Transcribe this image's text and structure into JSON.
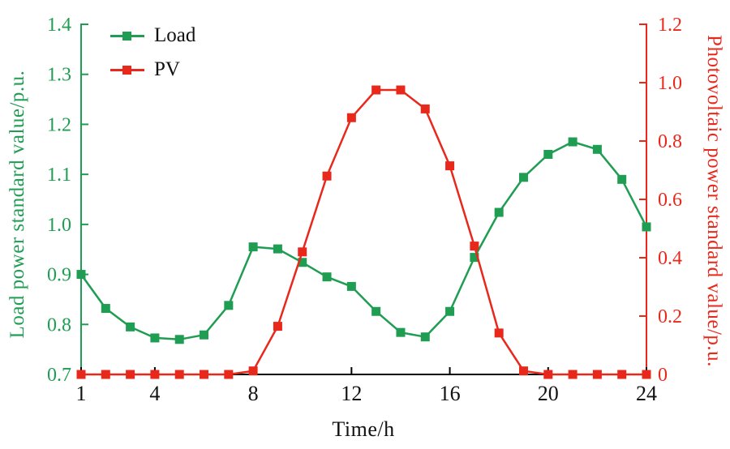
{
  "chart_data": {
    "type": "line",
    "title": "",
    "xlabel": "Time/h",
    "x_range": [
      1,
      24
    ],
    "x_ticks": [
      1,
      4,
      8,
      12,
      16,
      20,
      24
    ],
    "x_tick_labels": [
      "1",
      "4",
      "8",
      "12",
      "16",
      "20",
      "24"
    ],
    "x": [
      1,
      2,
      3,
      4,
      5,
      6,
      7,
      8,
      9,
      10,
      11,
      12,
      13,
      14,
      15,
      16,
      17,
      18,
      19,
      20,
      21,
      22,
      23,
      24
    ],
    "left_axis": {
      "label": "Load power standard value/p.u.",
      "range": [
        0.7,
        1.4
      ],
      "ticks": [
        0.7,
        0.8,
        0.9,
        1.0,
        1.1,
        1.2,
        1.3,
        1.4
      ],
      "tick_labels": [
        "0.7",
        "0.8",
        "0.9",
        "1.0",
        "1.1",
        "1.2",
        "1.3",
        "1.4"
      ],
      "color": "#1f9d52"
    },
    "right_axis": {
      "label": "Photovoltaic power standard value/p.u.",
      "range": [
        0,
        1.2
      ],
      "ticks": [
        0,
        0.2,
        0.4,
        0.6,
        0.8,
        1.0,
        1.2
      ],
      "tick_labels": [
        "0",
        "0.2",
        "0.4",
        "0.6",
        "0.8",
        "1.0",
        "1.2"
      ],
      "color": "#e9281c"
    },
    "series": [
      {
        "name": "Load",
        "axis": "left",
        "color": "#1f9d52",
        "marker": "square",
        "values": [
          0.9,
          0.832,
          0.795,
          0.773,
          0.77,
          0.779,
          0.838,
          0.955,
          0.951,
          0.924,
          0.895,
          0.876,
          0.826,
          0.784,
          0.775,
          0.826,
          0.934,
          1.024,
          1.094,
          1.14,
          1.165,
          1.15,
          1.09,
          0.995
        ]
      },
      {
        "name": "PV",
        "axis": "right",
        "color": "#e9281c",
        "marker": "square",
        "values": [
          0,
          0,
          0,
          0,
          0,
          0,
          0,
          0.012,
          0.165,
          0.42,
          0.68,
          0.88,
          0.975,
          0.975,
          0.91,
          0.715,
          0.44,
          0.142,
          0.012,
          0,
          0,
          0,
          0,
          0
        ]
      }
    ],
    "legend_position": "top-left",
    "grid": false
  }
}
